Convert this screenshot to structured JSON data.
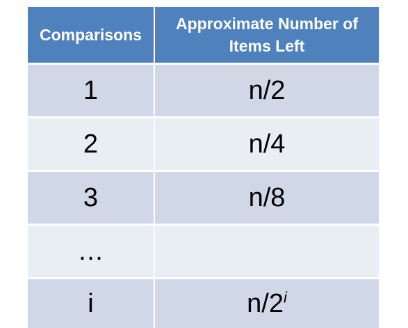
{
  "table": {
    "headers": {
      "comparisons": "Comparisons",
      "items_left": "Approximate Number of Items Left"
    },
    "rows": [
      {
        "comparisons": "1",
        "items_left": "n/2"
      },
      {
        "comparisons": "2",
        "items_left": "n/4"
      },
      {
        "comparisons": "3",
        "items_left": "n/8"
      },
      {
        "comparisons": "…",
        "items_left": ""
      },
      {
        "comparisons": "i",
        "items_left_base": "n/2",
        "items_left_exponent": "i"
      }
    ]
  },
  "colors": {
    "header_bg": "#4f81bd",
    "row_odd_bg": "#d0d8e8",
    "row_even_bg": "#e9edf4"
  }
}
